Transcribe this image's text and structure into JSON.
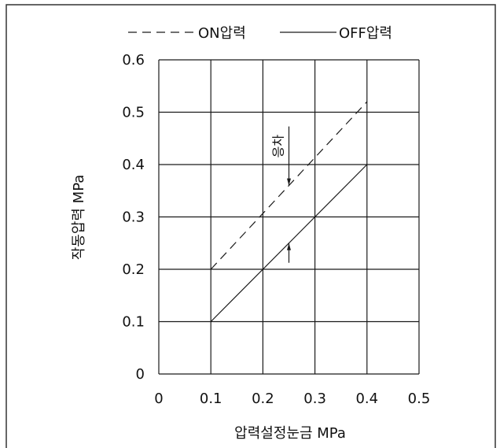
{
  "chart_data": {
    "type": "line",
    "xlabel": "압력설정눈금 MPa",
    "ylabel": "작동압력 MPa",
    "xlim": [
      0,
      0.5
    ],
    "ylim": [
      0,
      0.6
    ],
    "x_ticks": [
      "0",
      "0.1",
      "0.2",
      "0.3",
      "0.4",
      "0.5"
    ],
    "y_ticks": [
      "0",
      "0.1",
      "0.2",
      "0.3",
      "0.4",
      "0.5",
      "0.6"
    ],
    "grid": true,
    "legend_position": "top",
    "series": [
      {
        "name": "ON압력",
        "style": "dashed",
        "x": [
          0.1,
          0.4
        ],
        "y": [
          0.2,
          0.52
        ]
      },
      {
        "name": "OFF압력",
        "style": "solid",
        "x": [
          0.1,
          0.4
        ],
        "y": [
          0.1,
          0.4
        ]
      }
    ],
    "annotation": {
      "text": "응차",
      "x": 0.25,
      "y_top": 0.36,
      "y_bottom": 0.25
    }
  },
  "colors": {
    "line": "#1a1a1a",
    "grid": "#1a1a1a",
    "border": "#333333"
  }
}
